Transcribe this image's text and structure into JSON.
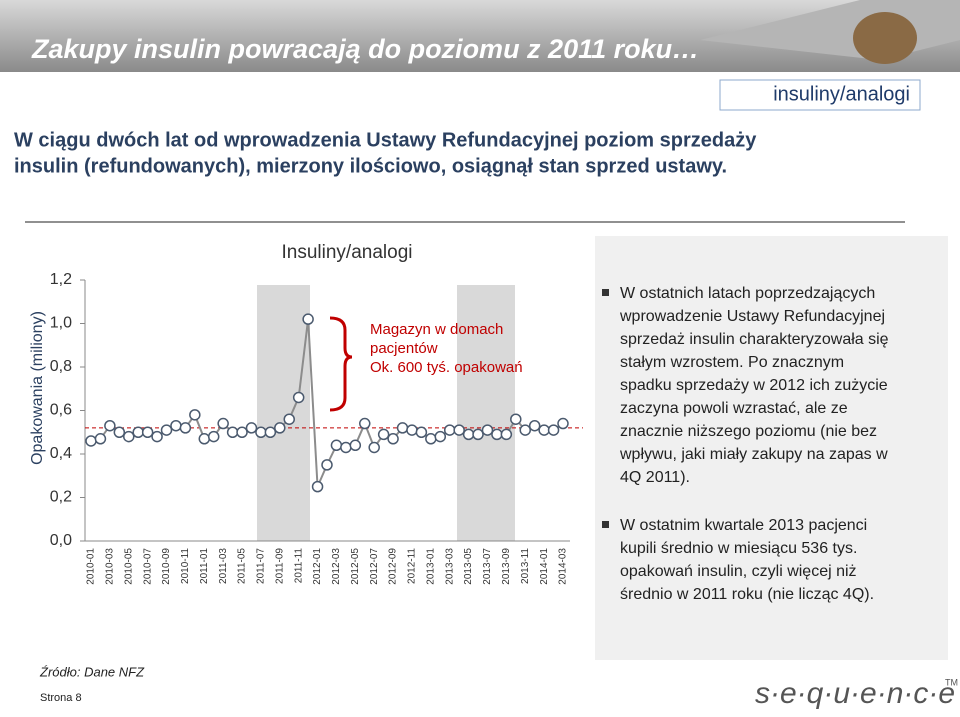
{
  "header": {
    "title": "Zakupy insulin powracają do poziomu z 2011 roku…",
    "tag": "insuliny/analogi"
  },
  "subtitle": [
    "W ciągu dwóch lat od wprowadzenia Ustawy Refundacyjnej poziom sprzedaży",
    "insulin (refundowanych), mierzony ilościowo, osiągnął stan sprzed ustawy."
  ],
  "chart_data": {
    "type": "line",
    "title": "Insuliny/analogi",
    "y_label": "Opakowania (miliony)",
    "categories": [
      "2010-01",
      null,
      "2010-03",
      null,
      "2010-05",
      null,
      "2010-07",
      null,
      "2010-09",
      null,
      "2010-11",
      null,
      "2011-01",
      null,
      "2011-03",
      null,
      "2011-05",
      null,
      "2011-07",
      null,
      "2011-09",
      null,
      "2011-11",
      null,
      "2012-01",
      null,
      "2012-03",
      null,
      "2012-05",
      null,
      "2012-07",
      null,
      "2012-09",
      null,
      "2012-11",
      null,
      "2013-01",
      null,
      "2013-03",
      null,
      "2013-05",
      null,
      "2013-07",
      null,
      "2013-09",
      null,
      "2013-11",
      null,
      "2014-01",
      null,
      "2014-03"
    ],
    "series": [
      {
        "name": "Insuliny/analogi",
        "color": "#8c8c8c",
        "values": [
          0.46,
          0.47,
          0.53,
          0.5,
          0.48,
          0.5,
          0.5,
          0.48,
          0.51,
          0.53,
          0.52,
          0.58,
          0.47,
          0.48,
          0.54,
          0.5,
          0.5,
          0.52,
          0.5,
          0.5,
          0.52,
          0.56,
          0.66,
          1.02,
          0.25,
          0.35,
          0.44,
          0.43,
          0.44,
          0.54,
          0.43,
          0.49,
          0.47,
          0.52,
          0.51,
          0.5,
          0.47,
          0.48,
          0.51,
          0.51,
          0.49,
          0.49,
          0.51,
          0.49,
          0.49,
          0.56,
          0.51,
          0.53,
          0.51,
          0.51,
          0.54
        ]
      }
    ],
    "reference_line": 0.52,
    "ylim": [
      0,
      1.2
    ],
    "yticks": [
      {
        "value": 0,
        "label": "0,0"
      },
      {
        "value": 0.2,
        "label": "0,2"
      },
      {
        "value": 0.4,
        "label": "0,4"
      },
      {
        "value": 0.6,
        "label": "0,6"
      },
      {
        "value": 0.8,
        "label": "0,8"
      },
      {
        "value": 1.0,
        "label": "1,0"
      },
      {
        "value": 1.2,
        "label": "1,2"
      }
    ],
    "annotation": [
      "Magazyn w domach",
      "pacjentów",
      "Ok. 600 tyś. opakowań"
    ]
  },
  "panel": {
    "bullets": [
      [
        "W ostatnich latach poprzedzających",
        "wprowadzenie Ustawy Refundacyjnej",
        "sprzedaż insulin charakteryzowała się",
        "stałym wzrostem. Po znacznym",
        "spadku sprzedaży w 2012 ich zużycie",
        "zaczyna powoli wzrastać, ale ze",
        "znacznie niższego poziomu (nie bez",
        "wpływu, jaki miały zakupy na zapas w",
        "4Q 2011)."
      ],
      [
        "W ostatnim kwartale 2013 pacjenci",
        "kupili średnio w miesiącu 536 tys.",
        "opakowań insulin, czyli więcej niż",
        "średnio w 2011 roku (nie licząc 4Q)."
      ]
    ]
  },
  "footer": {
    "source": "Źródło: Dane NFZ",
    "page": "Strona 8",
    "logo": "s·e·q·u·e·n·c·e",
    "tm": "TM"
  }
}
